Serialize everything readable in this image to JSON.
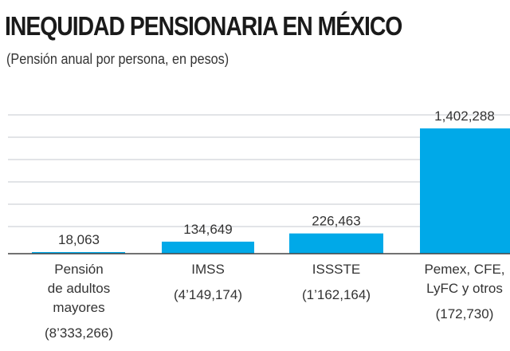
{
  "chart_data": {
    "type": "bar",
    "title": "INEQUIDAD PENSIONARIA EN MÉXICO",
    "subtitle": "(Pensión anual por persona, en pesos)",
    "categories": [
      {
        "label": [
          "Pensión",
          "de adultos",
          "mayores"
        ],
        "count": "(8’333,266)"
      },
      {
        "label": [
          "IMSS"
        ],
        "count": "(4’149,174)"
      },
      {
        "label": [
          "ISSSTE"
        ],
        "count": "(1’162,164)"
      },
      {
        "label": [
          "Pemex, CFE,",
          "LyFC y otros"
        ],
        "count": "(172,730)"
      }
    ],
    "values": [
      18063,
      134649,
      226463,
      1402288
    ],
    "value_labels": [
      "18,063",
      "134,649",
      "226,463",
      "1,402,288"
    ],
    "ylim": [
      0,
      1500000
    ],
    "grid": true,
    "colors": {
      "bar": "#00a9e8",
      "grid": "#d9dcdf",
      "axis": "#444444"
    }
  }
}
